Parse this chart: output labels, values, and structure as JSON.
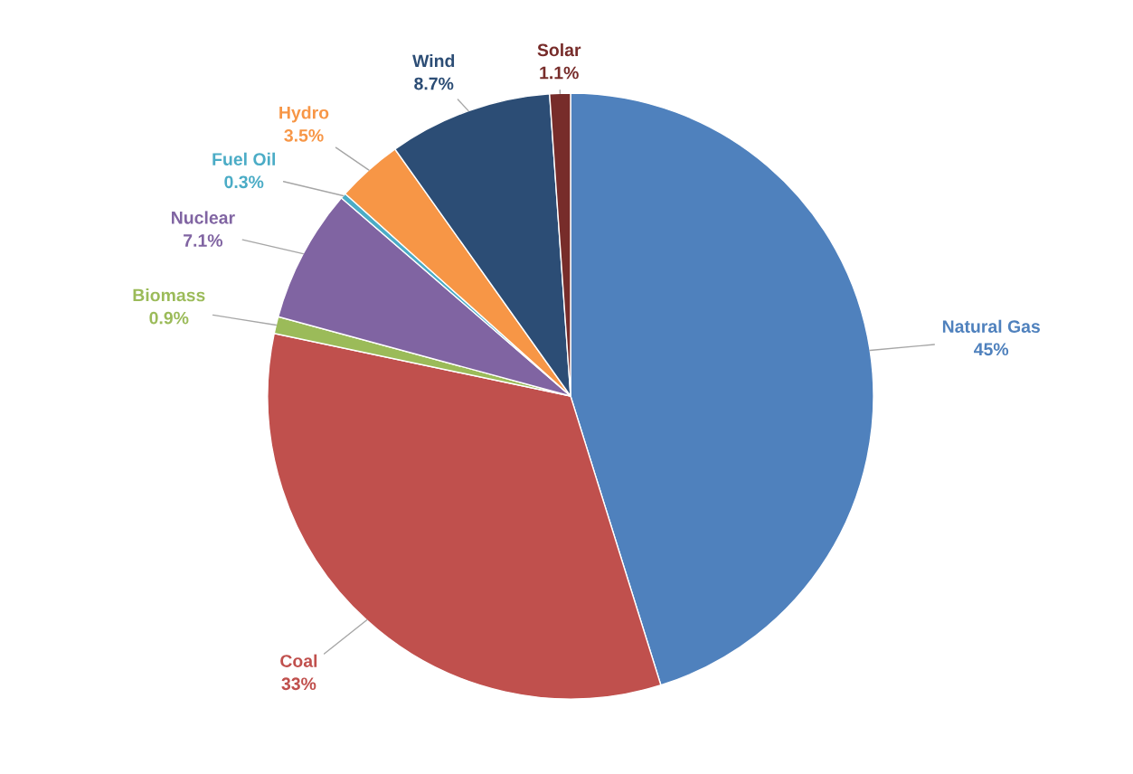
{
  "chart_data": {
    "type": "pie",
    "categories": [
      "Natural Gas",
      "Coal",
      "Biomass",
      "Nuclear",
      "Fuel Oil",
      "Hydro",
      "Wind",
      "Solar"
    ],
    "values": [
      45,
      33,
      0.9,
      7.1,
      0.3,
      3.5,
      8.7,
      1.1
    ],
    "value_labels": [
      "45%",
      "33%",
      "0.9%",
      "7.1%",
      "0.3%",
      "3.5%",
      "8.7%",
      "1.1%"
    ],
    "colors": [
      "#4f81bd",
      "#c0504d",
      "#9bbb59",
      "#8064a2",
      "#4bacc6",
      "#f79646",
      "#2c4d75",
      "#772c2a"
    ]
  }
}
